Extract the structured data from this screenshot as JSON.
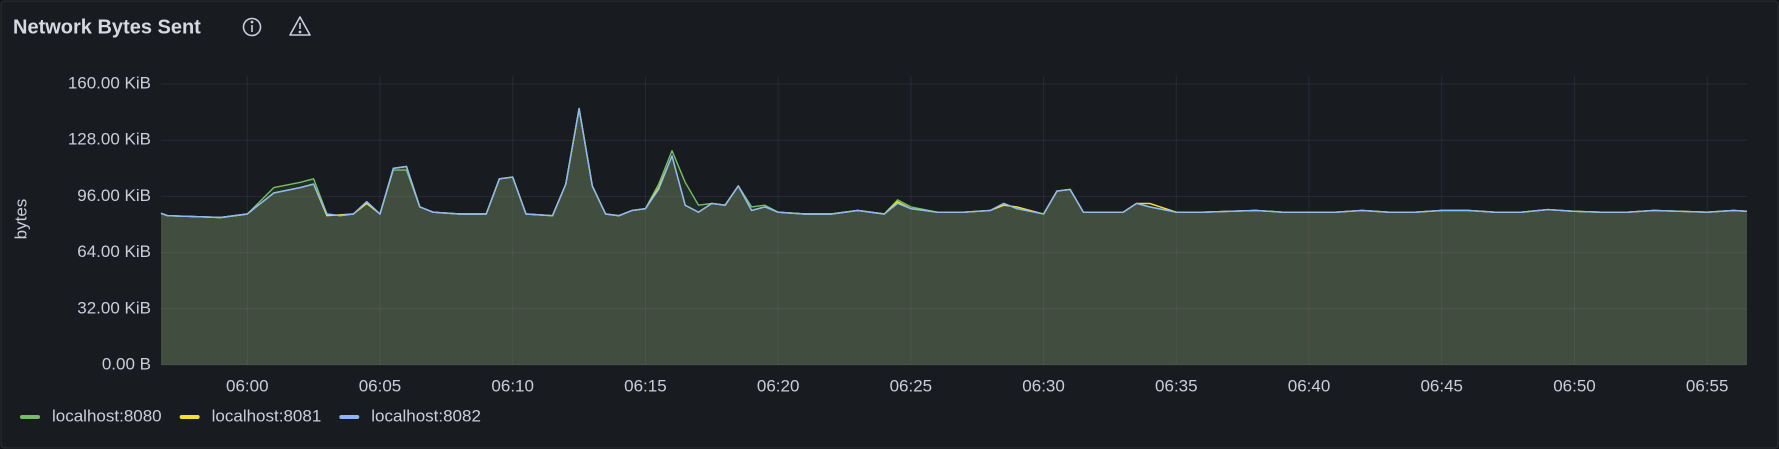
{
  "chart_data": {
    "type": "line",
    "title": "Network Bytes Sent",
    "ylabel": "bytes",
    "x": [
      356.75,
      357,
      358,
      359,
      360,
      361,
      362,
      362.5,
      363,
      363.5,
      364,
      364.5,
      365,
      365.5,
      366,
      366.5,
      367,
      368,
      369,
      369.5,
      370,
      370.5,
      371.5,
      372,
      372.5,
      373,
      373.5,
      374,
      374.5,
      375,
      375.5,
      376,
      376.5,
      377,
      377.5,
      378,
      378.5,
      379,
      379.5,
      380,
      381,
      382,
      383,
      384,
      384.5,
      385,
      386,
      387,
      388,
      388.5,
      389,
      390,
      390.5,
      391,
      391.5,
      393,
      393.5,
      394,
      395,
      396,
      397,
      398,
      399,
      400,
      401,
      402,
      403,
      404,
      405,
      406,
      407,
      408,
      409,
      410,
      411,
      412,
      413,
      414,
      415,
      416,
      416.5
    ],
    "series": [
      {
        "name": "localhost:8080",
        "color": "#73bf69",
        "values": [
          86.4,
          85,
          84.5,
          84,
          86,
          101,
          104,
          106,
          86,
          85,
          86,
          93,
          86,
          111,
          111,
          90,
          87,
          86,
          86,
          106,
          107,
          86,
          85,
          103,
          146,
          102,
          86,
          85,
          88,
          89,
          103,
          122,
          104,
          91,
          92,
          91,
          102,
          90,
          91,
          87,
          86,
          86,
          88,
          86,
          94,
          90,
          87,
          87,
          88,
          92,
          89,
          86,
          99,
          100,
          87,
          87,
          92,
          90,
          87,
          87,
          87.5,
          88,
          87,
          87,
          87,
          88,
          87,
          87,
          88,
          88,
          87,
          87,
          88.5,
          87.5,
          87,
          87,
          88,
          87.5,
          87,
          88,
          87.5
        ]
      },
      {
        "name": "localhost:8081",
        "color": "#fade2a",
        "values": [
          86.4,
          85,
          84.5,
          84,
          86,
          98,
          101,
          103,
          85,
          85.5,
          86,
          92,
          86,
          112,
          113,
          90,
          87,
          86,
          86,
          106,
          107,
          86,
          85,
          103,
          146,
          102,
          86,
          85,
          88,
          89,
          101,
          119,
          91,
          87,
          92,
          91,
          102,
          88,
          90,
          87,
          86,
          86,
          88,
          86,
          93,
          89,
          87,
          87,
          88,
          91,
          90,
          86,
          99,
          100,
          87,
          87,
          92,
          92,
          87,
          87,
          87.5,
          88,
          87,
          87,
          87,
          88,
          87,
          87,
          88,
          88,
          87,
          87,
          88.5,
          87.5,
          87,
          87,
          88,
          87.5,
          87,
          88,
          87.5
        ]
      },
      {
        "name": "localhost:8082",
        "color": "#8ab8ff",
        "values": [
          86.4,
          85,
          84.5,
          84,
          86,
          98,
          101,
          103,
          86,
          85,
          86,
          93,
          86,
          112,
          113,
          90,
          87,
          86,
          86,
          106,
          107,
          86,
          85,
          103,
          146,
          102,
          86,
          85,
          88,
          89,
          100,
          119,
          91,
          87,
          92,
          91,
          102,
          88,
          90,
          87,
          86,
          86,
          88,
          86,
          92,
          89,
          87,
          87,
          88,
          92,
          89,
          86,
          99,
          100,
          87,
          87,
          92,
          90,
          87,
          87,
          87.5,
          88,
          87,
          87,
          87,
          88,
          87,
          87,
          88,
          88,
          87,
          87,
          88.5,
          87.5,
          87,
          87,
          88,
          87.5,
          87,
          88,
          87.5
        ]
      }
    ],
    "xlim": [
      356.75,
      416.5
    ],
    "xticks": [
      {
        "value": 360,
        "label": "06:00"
      },
      {
        "value": 365,
        "label": "06:05"
      },
      {
        "value": 370,
        "label": "06:10"
      },
      {
        "value": 375,
        "label": "06:15"
      },
      {
        "value": 380,
        "label": "06:20"
      },
      {
        "value": 385,
        "label": "06:25"
      },
      {
        "value": 390,
        "label": "06:30"
      },
      {
        "value": 395,
        "label": "06:35"
      },
      {
        "value": 400,
        "label": "06:40"
      },
      {
        "value": 405,
        "label": "06:45"
      },
      {
        "value": 410,
        "label": "06:50"
      },
      {
        "value": 415,
        "label": "06:55"
      }
    ],
    "ylim": [
      0,
      160
    ],
    "yticks": [
      {
        "value": 0,
        "label": "0.00 B"
      },
      {
        "value": 32,
        "label": "32.00 KiB"
      },
      {
        "value": 64,
        "label": "64.00 KiB"
      },
      {
        "value": 96,
        "label": "96.00 KiB"
      },
      {
        "value": 128,
        "label": "128.00 KiB"
      },
      {
        "value": 160,
        "label": "160.00 KiB"
      }
    ],
    "grid": true,
    "legend": "bottom-left"
  }
}
